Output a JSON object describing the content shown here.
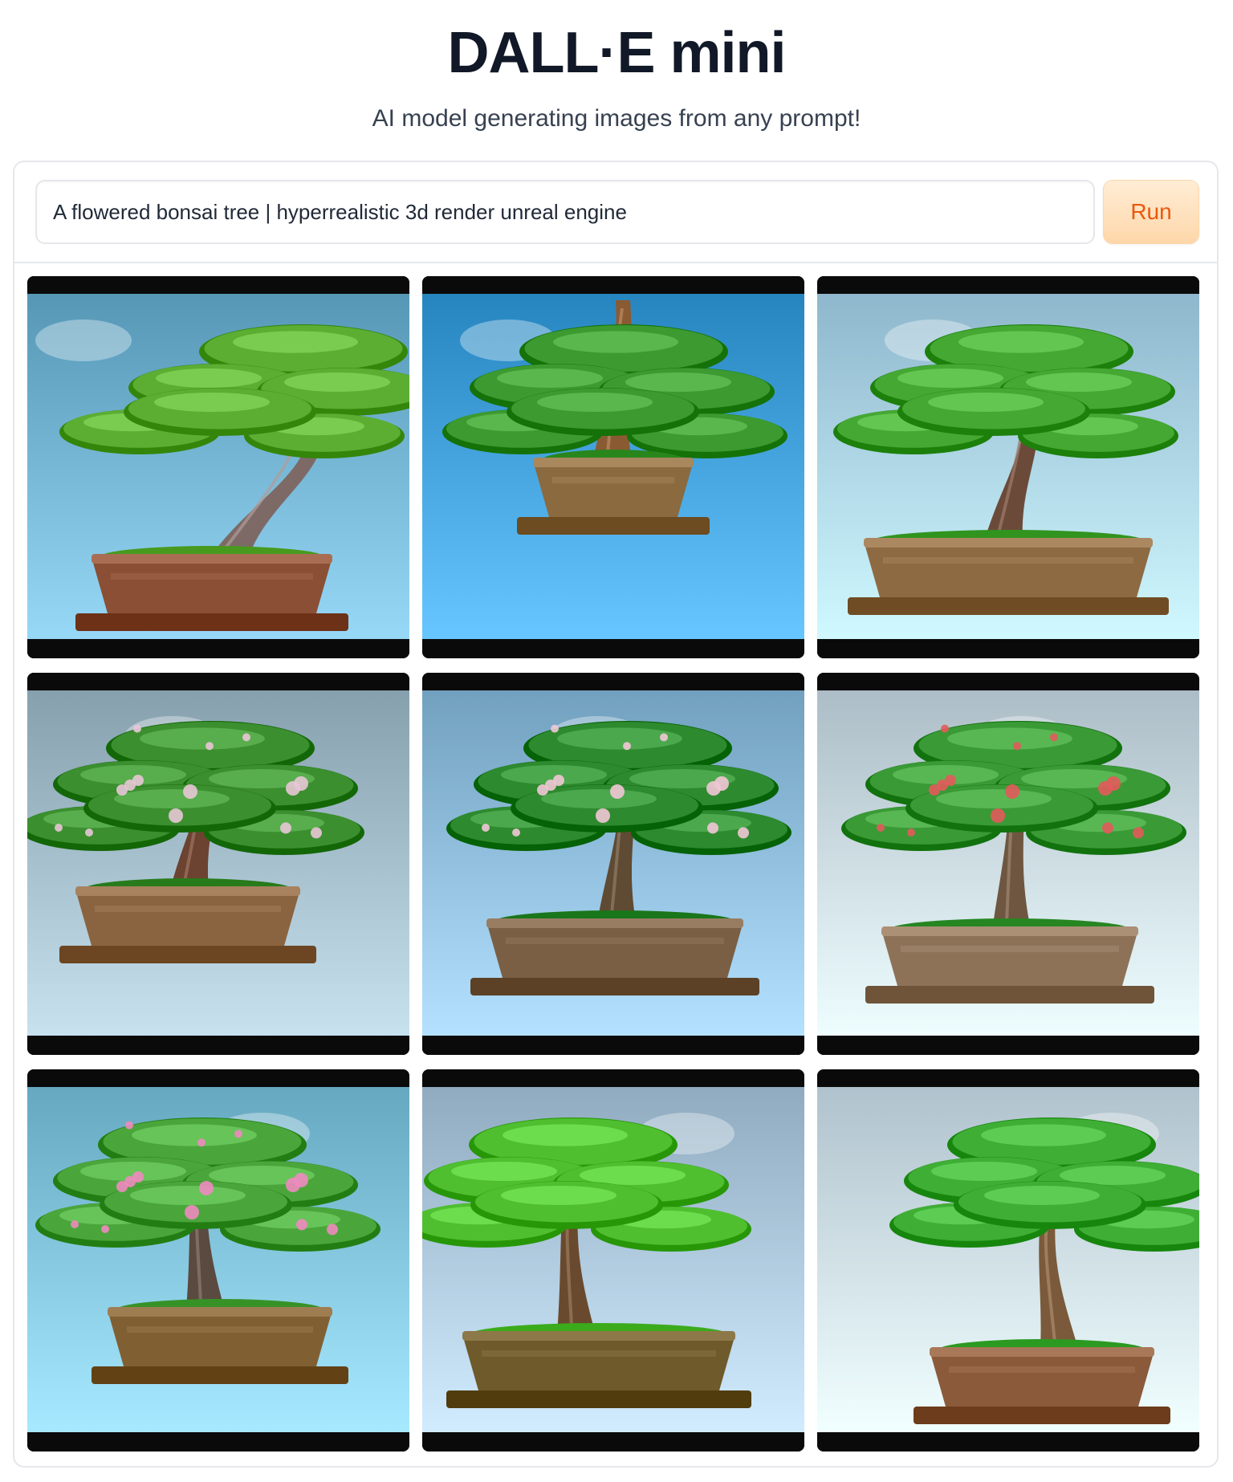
{
  "header": {
    "title": "DALL·E mini",
    "subtitle": "AI model generating images from any prompt!"
  },
  "prompt": {
    "value": "A flowered bonsai tree | hyperrealistic 3d render unreal engine"
  },
  "run_label": "Run",
  "colors": {
    "accent": "#ea580c",
    "button_bg": "#fed7aa",
    "border": "#e5e7eb",
    "title": "#111827"
  },
  "gallery": {
    "items": [
      {
        "subject": "bonsai-tree",
        "sky": "#6fb0cf",
        "pot": "#8a4f34",
        "foliage": "#5cae32",
        "trunk": "#7d6a66",
        "blossoms": ""
      },
      {
        "subject": "bonsai-tree",
        "sky": "#3f9ed8",
        "pot": "#8a6a3e",
        "foliage": "#3c9a30",
        "trunk": "#8a5a32",
        "blossoms": ""
      },
      {
        "subject": "bonsai-tree",
        "sky": "#a8d0e6",
        "pot": "#8e6a42",
        "foliage": "#44a833",
        "trunk": "#6b4a3a",
        "blossoms": ""
      },
      {
        "subject": "bonsai-tree",
        "sky": "#9fb9c7",
        "pot": "#8a6440",
        "foliage": "#3b8f2f",
        "trunk": "#6b4330",
        "blossoms": "#e8c7d6"
      },
      {
        "subject": "bonsai-tree",
        "sky": "#8bb9d8",
        "pot": "#7a5f44",
        "foliage": "#2e8a2e",
        "trunk": "#5f4a33",
        "blossoms": "#f1c6d6"
      },
      {
        "subject": "bonsai-tree",
        "sky": "#c6d6e0",
        "pot": "#8d7258",
        "foliage": "#3a9a36",
        "trunk": "#6e5640",
        "blossoms": "#e25b5b"
      },
      {
        "subject": "bonsai-tree",
        "sky": "#7fc1d9",
        "pot": "#806033",
        "foliage": "#4aa63b",
        "trunk": "#5b4a40",
        "blossoms": "#f08ac0"
      },
      {
        "subject": "bonsai-tree",
        "sky": "#a9c3d8",
        "pot": "#6e5a2a",
        "foliage": "#4fbf2f",
        "trunk": "#6a4a2e",
        "blossoms": ""
      },
      {
        "subject": "bonsai-tree",
        "sky": "#c9dbe6",
        "pot": "#8a5a3a",
        "foliage": "#3fae35",
        "trunk": "#7a5a3a",
        "blossoms": ""
      }
    ]
  }
}
